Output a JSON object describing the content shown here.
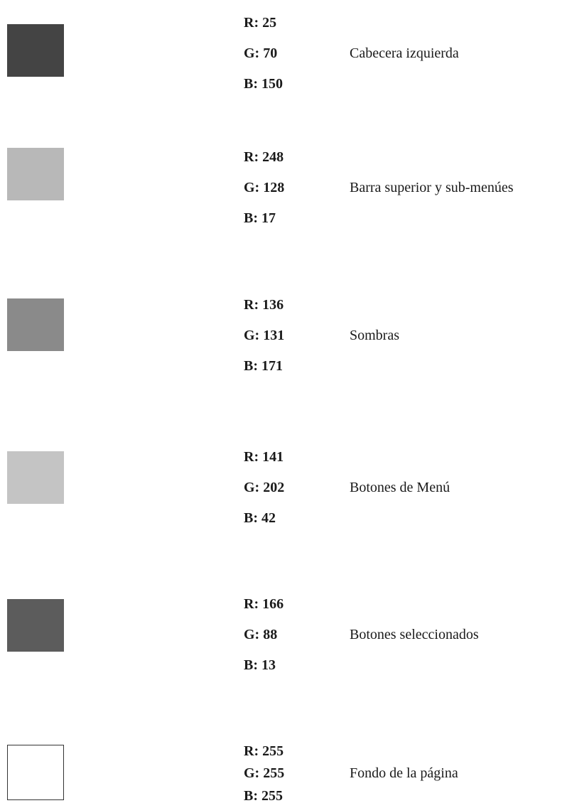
{
  "swatches": [
    {
      "r_label": "R: 25",
      "g_label": "G: 70",
      "b_label": "B: 150",
      "description": "Cabecera izquierda",
      "color": "#444444"
    },
    {
      "r_label": "R: 248",
      "g_label": "G: 128",
      "b_label": "B: 17",
      "description": "Barra superior y sub-menúes",
      "color": "#b8b8b8"
    },
    {
      "r_label": "R: 136",
      "g_label": "G: 131",
      "b_label": "B: 171",
      "description": "Sombras",
      "color": "#8a8a8a"
    },
    {
      "r_label": "R: 141",
      "g_label": "G: 202",
      "b_label": "B: 42",
      "description": "Botones de Menú",
      "color": "#c4c4c4"
    },
    {
      "r_label": "R: 166",
      "g_label": "G: 88",
      "b_label": "B: 13",
      "description": "Botones seleccionados",
      "color": "#5c5c5c"
    },
    {
      "r_label": "R: 255",
      "g_label": "G: 255",
      "b_label": "B: 255",
      "description": "Fondo de la página",
      "color": "#ffffff"
    }
  ]
}
